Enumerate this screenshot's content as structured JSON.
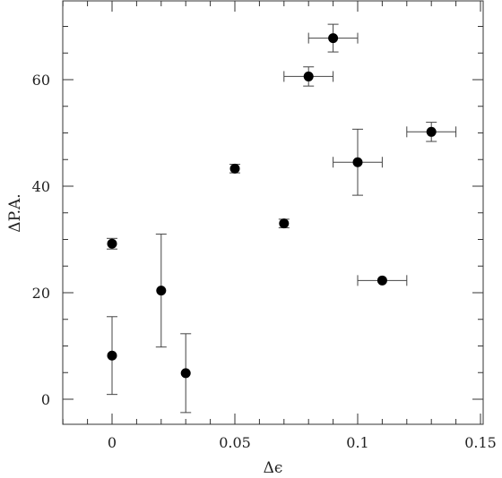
{
  "chart_data": {
    "type": "scatter",
    "title": "",
    "xlabel": "Δϵ",
    "ylabel": "ΔP.A.",
    "xlim": [
      -0.02,
      0.15
    ],
    "ylim": [
      -5,
      75
    ],
    "x_ticks": [
      0,
      0.05,
      0.1,
      0.15
    ],
    "x_tick_labels": [
      "0",
      "0.05",
      "0.1",
      "0.15"
    ],
    "y_ticks": [
      0,
      20,
      40,
      60
    ],
    "y_tick_labels": [
      "0",
      "20",
      "40",
      "60"
    ],
    "x_minor_step": 0.01,
    "y_minor_step": 5,
    "grid": false,
    "legend": "none",
    "series": [
      {
        "points": [
          {
            "x": 0.0,
            "y": 29.2,
            "xerr": 0,
            "yerr": 1.0
          },
          {
            "x": 0.0,
            "y": 8.2,
            "xerr": 0,
            "yerr": 7.3
          },
          {
            "x": 0.02,
            "y": 20.4,
            "xerr": 0,
            "yerr": 10.6
          },
          {
            "x": 0.03,
            "y": 4.9,
            "xerr": 0,
            "yerr": 7.4
          },
          {
            "x": 0.05,
            "y": 43.3,
            "xerr": 0,
            "yerr": 0.8
          },
          {
            "x": 0.07,
            "y": 33.0,
            "xerr": 0,
            "yerr": 0.8
          },
          {
            "x": 0.08,
            "y": 60.6,
            "xerr": 0.01,
            "yerr": 1.8
          },
          {
            "x": 0.09,
            "y": 67.8,
            "xerr": 0.01,
            "yerr": 2.6
          },
          {
            "x": 0.1,
            "y": 44.5,
            "xerr": 0.01,
            "yerr": 6.2
          },
          {
            "x": 0.11,
            "y": 22.3,
            "xerr": 0.01,
            "yerr": 0
          },
          {
            "x": 0.13,
            "y": 50.2,
            "xerr": 0.01,
            "yerr": 1.8
          }
        ]
      }
    ],
    "colors": {
      "marker": "#000000",
      "errorbar": "#444444",
      "frame": "#333333"
    }
  }
}
